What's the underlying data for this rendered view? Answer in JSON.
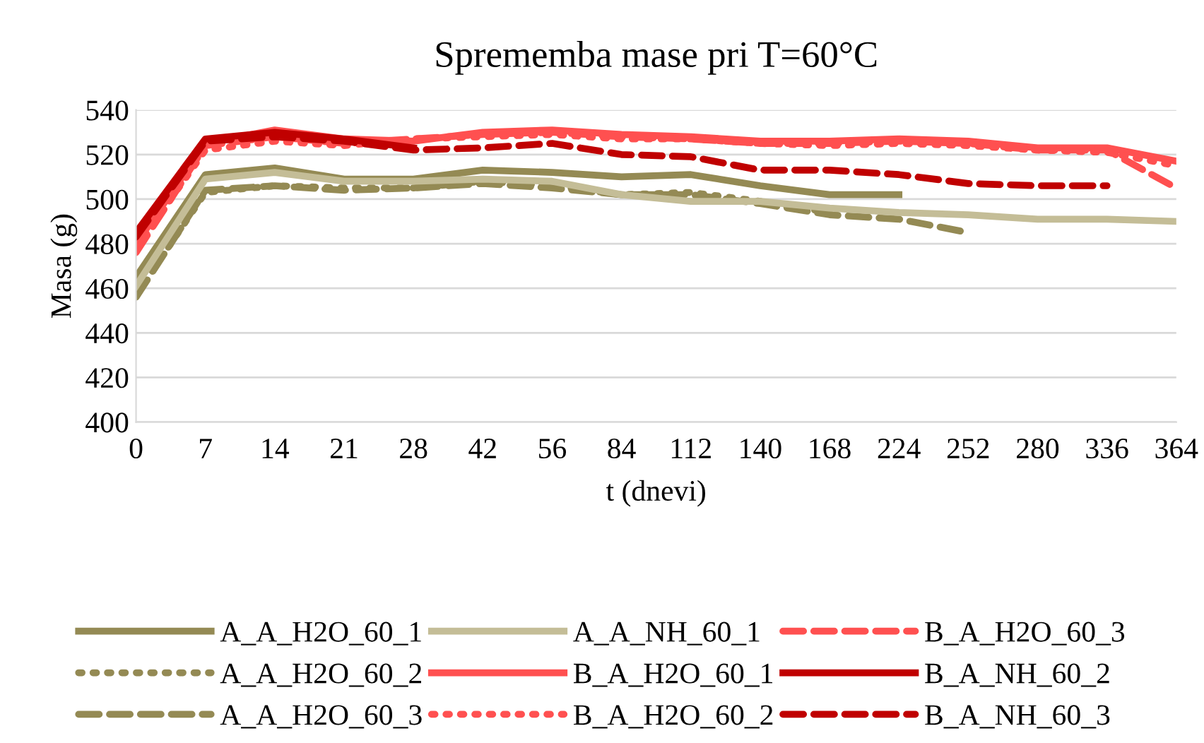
{
  "chart_data": {
    "type": "line",
    "title": "Sprememba mase pri T=60°C",
    "xlabel": "t (dnevi)",
    "ylabel": "Masa (g)",
    "categories": [
      "0",
      "7",
      "14",
      "21",
      "28",
      "42",
      "56",
      "84",
      "112",
      "140",
      "168",
      "224",
      "252",
      "280",
      "336",
      "364"
    ],
    "ylim": [
      400,
      540
    ],
    "yticks": [
      400,
      420,
      440,
      460,
      480,
      500,
      520,
      540
    ],
    "grid": "y",
    "legend": "bottom",
    "marker": "none",
    "series": [
      {
        "name": "A_A_H2O_60_1",
        "color": "#948a54",
        "line_style": "solid",
        "values": [
          465,
          511,
          514,
          509,
          509,
          513,
          512,
          510,
          511,
          506,
          502,
          502,
          null,
          null,
          null,
          null
        ]
      },
      {
        "name": "A_A_H2O_60_2",
        "color": "#948a54",
        "line_style": "dotted",
        "values": [
          457,
          503,
          506,
          505,
          505,
          508,
          506,
          502,
          503,
          499,
          494,
          null,
          null,
          null,
          null,
          null
        ]
      },
      {
        "name": "A_A_H2O_60_3",
        "color": "#948a54",
        "line_style": "dashed",
        "values": [
          456,
          504,
          506,
          504,
          505,
          507,
          505,
          502,
          502,
          498,
          493,
          491,
          485,
          null,
          null,
          null
        ]
      },
      {
        "name": "A_A_NH_60_1",
        "color": "#c4bd97",
        "line_style": "solid",
        "values": [
          461,
          509,
          512,
          508,
          508,
          509,
          508,
          502,
          499,
          499,
          496,
          494,
          493,
          491,
          491,
          490
        ]
      },
      {
        "name": "B_A_H2O_60_1",
        "color": "#ff5050",
        "line_style": "solid",
        "values": [
          480,
          525,
          531,
          527,
          526,
          530,
          531,
          529,
          528,
          526,
          526,
          527,
          526,
          523,
          523,
          517
        ]
      },
      {
        "name": "B_A_H2O_60_2",
        "color": "#ff5050",
        "line_style": "dotted",
        "values": [
          478,
          522,
          526,
          524,
          527,
          528,
          529,
          527,
          527,
          525,
          524,
          525,
          524,
          522,
          521,
          515
        ]
      },
      {
        "name": "B_A_H2O_60_3",
        "color": "#ff5050",
        "line_style": "dashed",
        "values": [
          476,
          524,
          528,
          525,
          527,
          529,
          530,
          528,
          527,
          525,
          525,
          526,
          525,
          522,
          522,
          505
        ]
      },
      {
        "name": "B_A_NH_60_2",
        "color": "#c00000",
        "line_style": "solid",
        "values": [
          485,
          527,
          530,
          527,
          523,
          null,
          null,
          null,
          null,
          null,
          null,
          null,
          null,
          null,
          null,
          null
        ]
      },
      {
        "name": "B_A_NH_60_3",
        "color": "#c00000",
        "line_style": "dashed",
        "values": [
          483,
          526,
          528,
          526,
          522,
          523,
          525,
          520,
          519,
          513,
          513,
          511,
          507,
          506,
          506,
          null
        ]
      }
    ]
  }
}
